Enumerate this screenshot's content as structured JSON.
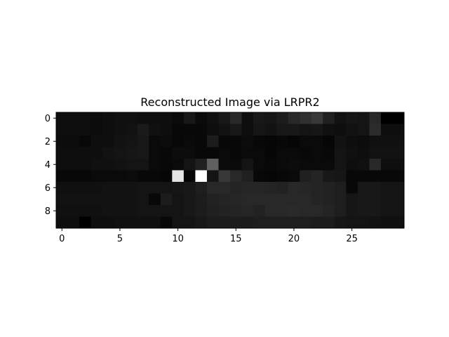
{
  "chart_data": {
    "type": "heatmap",
    "title": "Reconstructed Image via LRPR2",
    "xlabel": "",
    "ylabel": "",
    "colormap": "gray",
    "vmin": 0,
    "vmax": 255,
    "x_ticks": [
      0,
      5,
      10,
      15,
      20,
      25
    ],
    "y_ticks": [
      0,
      2,
      4,
      6,
      8
    ],
    "xlim": [
      -0.5,
      29.5
    ],
    "ylim": [
      9.5,
      -0.5
    ],
    "grid": false,
    "values": [
      [
        14,
        14,
        14,
        12,
        14,
        16,
        16,
        14,
        14,
        14,
        10,
        24,
        10,
        16,
        24,
        40,
        14,
        24,
        22,
        28,
        40,
        48,
        56,
        32,
        18,
        22,
        20,
        40,
        0,
        0
      ],
      [
        14,
        14,
        14,
        12,
        14,
        16,
        18,
        26,
        16,
        14,
        8,
        8,
        8,
        14,
        18,
        24,
        14,
        22,
        18,
        24,
        24,
        20,
        22,
        16,
        14,
        18,
        20,
        44,
        14,
        14
      ],
      [
        12,
        12,
        8,
        14,
        14,
        18,
        20,
        24,
        10,
        12,
        8,
        10,
        8,
        28,
        8,
        8,
        12,
        8,
        6,
        8,
        6,
        10,
        10,
        6,
        18,
        14,
        12,
        16,
        16,
        16
      ],
      [
        14,
        14,
        14,
        14,
        18,
        20,
        22,
        24,
        10,
        8,
        12,
        12,
        8,
        8,
        10,
        8,
        10,
        10,
        6,
        10,
        10,
        8,
        10,
        8,
        20,
        16,
        14,
        18,
        18,
        18
      ],
      [
        14,
        14,
        14,
        16,
        16,
        18,
        20,
        20,
        10,
        8,
        10,
        20,
        32,
        96,
        10,
        10,
        20,
        10,
        8,
        10,
        12,
        10,
        10,
        10,
        20,
        14,
        16,
        40,
        14,
        14
      ],
      [
        8,
        8,
        8,
        10,
        10,
        10,
        12,
        8,
        8,
        6,
        228,
        6,
        255,
        20,
        56,
        40,
        32,
        8,
        6,
        8,
        10,
        32,
        36,
        24,
        22,
        8,
        8,
        8,
        8,
        8
      ],
      [
        16,
        16,
        16,
        16,
        18,
        18,
        18,
        20,
        20,
        20,
        22,
        24,
        30,
        40,
        40,
        36,
        38,
        38,
        36,
        34,
        40,
        38,
        36,
        34,
        30,
        8,
        24,
        24,
        20,
        20
      ],
      [
        18,
        18,
        18,
        18,
        18,
        18,
        18,
        20,
        8,
        28,
        20,
        24,
        28,
        34,
        36,
        38,
        40,
        40,
        40,
        40,
        40,
        40,
        36,
        34,
        30,
        22,
        24,
        24,
        20,
        20
      ],
      [
        16,
        16,
        16,
        16,
        18,
        18,
        18,
        20,
        20,
        20,
        20,
        24,
        28,
        32,
        34,
        36,
        38,
        34,
        40,
        40,
        42,
        40,
        40,
        36,
        30,
        22,
        24,
        24,
        20,
        20
      ],
      [
        14,
        14,
        0,
        14,
        14,
        16,
        16,
        16,
        16,
        8,
        20,
        20,
        24,
        28,
        28,
        28,
        28,
        30,
        30,
        30,
        30,
        30,
        28,
        28,
        22,
        20,
        20,
        18,
        16,
        16
      ]
    ]
  }
}
